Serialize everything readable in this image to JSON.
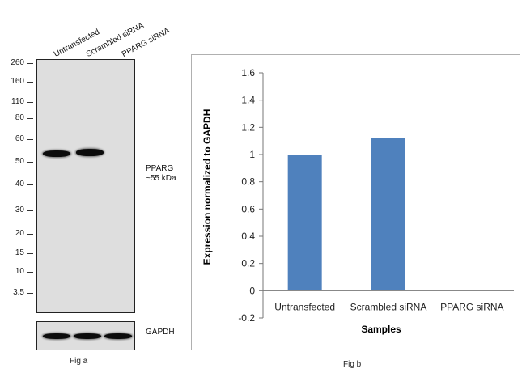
{
  "western_blot": {
    "lanes": [
      "Untransfected",
      "Scrambled siRNA",
      "PPARG siRNA"
    ],
    "mw_markers": [
      "260",
      "160",
      "110",
      "80",
      "60",
      "50",
      "40",
      "30",
      "20",
      "15",
      "10",
      "3.5"
    ],
    "target_label_line1": "PPARG",
    "target_label_line2": "~55 kDa",
    "loading_control_label": "GAPDH",
    "caption": "Fig a"
  },
  "chart_data": {
    "type": "bar",
    "categories": [
      "Untransfected",
      "Scrambled siRNA",
      "PPARG siRNA"
    ],
    "values": [
      1.0,
      1.12,
      0.0
    ],
    "title": "",
    "xlabel": "Samples",
    "ylabel": "Expression normalized to GAPDH",
    "ylim": [
      -0.2,
      1.6
    ],
    "yticks": [
      "-0.2",
      "0",
      "0.2",
      "0.4",
      "0.6",
      "0.8",
      "1",
      "1.2",
      "1.4",
      "1.6"
    ],
    "bar_color": "#4f81bd",
    "grid": false,
    "legend": "none",
    "caption": "Fig b"
  }
}
